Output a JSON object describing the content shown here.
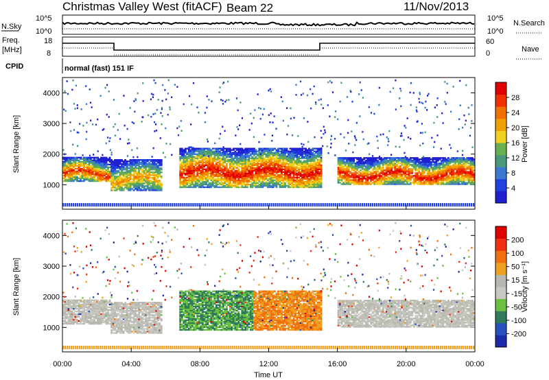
{
  "header": {
    "station": "Christmas Valley West (fitACF)",
    "beam": "Beam 22",
    "date": "11/Nov/2013"
  },
  "noise_panel": {
    "left_label": "N.Sky",
    "left_ticks": [
      "10^5",
      "10^0"
    ],
    "right_label": "N.Search",
    "right_ticks": [
      "10^5",
      "10^0"
    ]
  },
  "freq_panel": {
    "left_label_line1": "Freq.",
    "left_label_line2": "[MHz]",
    "left_ticks": [
      "18",
      "8"
    ],
    "right_label": "Nave",
    "right_ticks": [
      "60",
      "0"
    ]
  },
  "cpid": {
    "label": "CPID",
    "value": "normal (fast) 151 IF"
  },
  "colors": {
    "power_scale": [
      "#2020d0",
      "#2040e0",
      "#3a7ad0",
      "#4a9a7a",
      "#68b050",
      "#f0d020",
      "#f0a000",
      "#f07000",
      "#f03000",
      "#e00000"
    ],
    "velocity_scale": [
      "#1a2aa8",
      "#2a50c0",
      "#2e7a5a",
      "#6ac040",
      "#c8c8c0",
      "#b8b8b0",
      "#f0a020",
      "#f07010",
      "#f03010",
      "#e00000"
    ]
  },
  "chart_data": [
    {
      "type": "heatmap",
      "title": "Power",
      "ylabel": "Slant Range [km]",
      "yticks": [
        "1000",
        "2000",
        "3000",
        "4000"
      ],
      "ylim": [
        200,
        4500
      ],
      "xlim": [
        0,
        24
      ],
      "colorbar_label": "Power [dB]",
      "colorbar_ticks": [
        "4",
        "8",
        "12",
        "16",
        "20",
        "24",
        "28"
      ],
      "colorbar_range": [
        0,
        32
      ],
      "echo_bands": [
        {
          "t0": 0.0,
          "t1": 2.8,
          "r0": 1100,
          "r1": 1900,
          "peak_db": 28
        },
        {
          "t0": 2.8,
          "t1": 5.7,
          "r0": 800,
          "r1": 1800,
          "peak_db": 22
        },
        {
          "t0": 6.8,
          "t1": 15.0,
          "r0": 900,
          "r1": 2200,
          "peak_db": 30
        },
        {
          "t0": 16.0,
          "t1": 24.0,
          "r0": 1000,
          "r1": 1900,
          "peak_db": 30
        }
      ]
    },
    {
      "type": "heatmap",
      "title": "Velocity",
      "ylabel": "Slant Range [km]",
      "yticks": [
        "1000",
        "2000",
        "3000",
        "4000"
      ],
      "ylim": [
        200,
        4500
      ],
      "xlim": [
        0,
        24
      ],
      "xlabel": "Time UT",
      "xticks": [
        "00:00",
        "04:00",
        "08:00",
        "12:00",
        "16:00",
        "20:00",
        "00:00"
      ],
      "colorbar_label": "Velocity [m s⁻¹]",
      "colorbar_ticks": [
        "200",
        "100",
        "50",
        "15",
        "-15",
        "-50",
        "-100",
        "-200"
      ],
      "colorbar_range": [
        -250,
        250
      ]
    }
  ]
}
